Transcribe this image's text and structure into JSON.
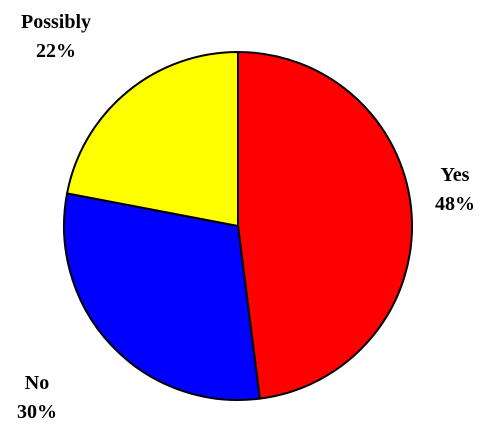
{
  "chart_data": {
    "type": "pie",
    "title": "",
    "start_angle_deg": 0,
    "direction": "clockwise",
    "slices": [
      {
        "label": "Yes",
        "value": 48,
        "value_label": "48%",
        "color": "#ff0000"
      },
      {
        "label": "No",
        "value": 30,
        "value_label": "30%",
        "color": "#0000ff"
      },
      {
        "label": "Possibly",
        "value": 22,
        "value_label": "22%",
        "color": "#ffff00"
      }
    ],
    "stroke_color": "#000000",
    "legend": "none"
  }
}
